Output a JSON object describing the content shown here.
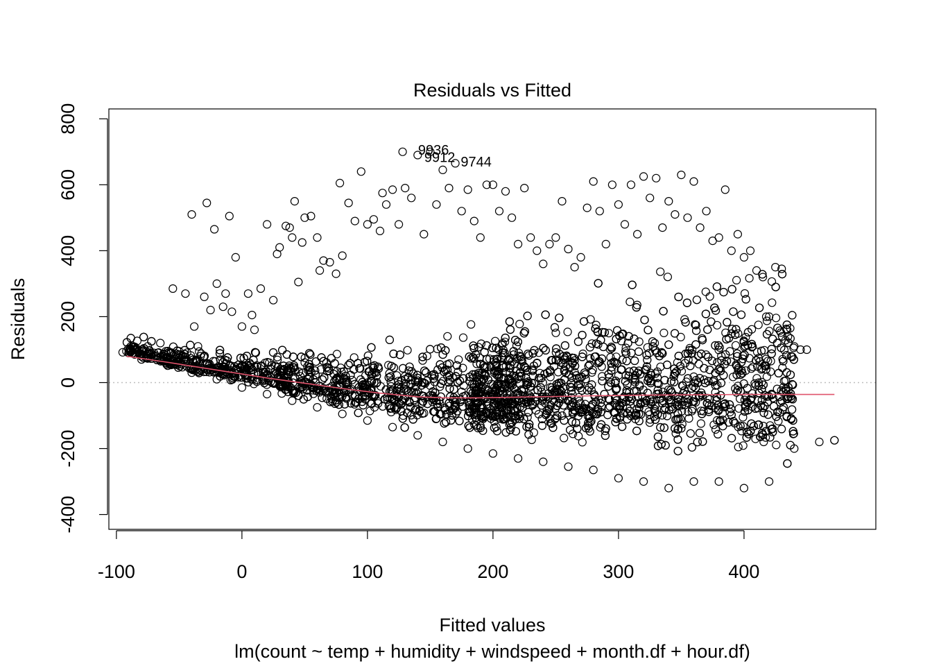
{
  "chart_data": {
    "type": "scatter",
    "title": "Residuals vs Fitted",
    "xlabel": "Fitted values",
    "ylabel": "Residuals",
    "subtitle": "lm(count ~ temp + humidity + windspeed + month.df + hour.df)",
    "xlim": [
      -106,
      505
    ],
    "ylim": [
      -445,
      830
    ],
    "x_ticks": [
      -100,
      0,
      100,
      200,
      300,
      400
    ],
    "y_ticks": [
      -400,
      -200,
      0,
      200,
      400,
      600,
      800
    ],
    "x_tick_labels": [
      "-100",
      "0",
      "100",
      "200",
      "300",
      "400"
    ],
    "y_tick_labels": [
      "-400",
      "-200",
      "0",
      "200",
      "400",
      "600",
      "800"
    ],
    "reference_line": {
      "y": 0,
      "style": "dotted",
      "color": "#bebebe"
    },
    "grid": false,
    "point_color": "#000000",
    "smooth_color": "#df536b",
    "smooth_line": {
      "x": [
        -92,
        -60,
        -20,
        0,
        20,
        50,
        80,
        110,
        140,
        160,
        190,
        220,
        250,
        280,
        320,
        360,
        400,
        440,
        472
      ],
      "y": [
        80,
        62,
        38,
        26,
        14,
        -2,
        -18,
        -32,
        -43,
        -46,
        -46,
        -44,
        -42,
        -40,
        -38,
        -37,
        -36,
        -36,
        -36
      ]
    },
    "labeled_points": [
      {
        "label": "9936",
        "x": 137,
        "y": 702
      },
      {
        "label": "9912",
        "x": 142,
        "y": 680
      },
      {
        "label": "9744",
        "x": 171,
        "y": 666
      }
    ],
    "series": [
      {
        "x": [
          -92,
          -88,
          -85,
          -80,
          -75,
          -70,
          -65,
          -60,
          -55,
          -50,
          -45,
          -40,
          -38,
          -35,
          -30,
          -28,
          -25,
          -22,
          -20,
          -15,
          -13,
          -10,
          -8,
          -5,
          0,
          5,
          8,
          10,
          15,
          20,
          25,
          28,
          30,
          35,
          38,
          40,
          42,
          45,
          48,
          50,
          55,
          60,
          62,
          65,
          70,
          75,
          78,
          80,
          85,
          90,
          95,
          100,
          105,
          110,
          112,
          115,
          120,
          125,
          128,
          130,
          135,
          140,
          145,
          150,
          155,
          160,
          165,
          170,
          175,
          180,
          185,
          190,
          195,
          200,
          205,
          210,
          215,
          220,
          225,
          230,
          235,
          240,
          245,
          250,
          255,
          260,
          265,
          270,
          275,
          280,
          285,
          290,
          295,
          300,
          305,
          310,
          315,
          320,
          325,
          330,
          335,
          340,
          345,
          350,
          355,
          360,
          365,
          370,
          375,
          380,
          385,
          390,
          395,
          400,
          405,
          410,
          415,
          420,
          425,
          430,
          435,
          440,
          445,
          450,
          472
        ],
        "y": [
          95,
          98,
          102,
          96,
          110,
          90,
          120,
          88,
          285,
          95,
          270,
          510,
          170,
          110,
          260,
          545,
          220,
          465,
          300,
          230,
          270,
          505,
          215,
          380,
          170,
          270,
          205,
          160,
          285,
          480,
          250,
          390,
          410,
          475,
          470,
          440,
          550,
          305,
          425,
          500,
          505,
          440,
          340,
          370,
          365,
          330,
          605,
          385,
          545,
          490,
          640,
          480,
          495,
          460,
          575,
          540,
          585,
          480,
          700,
          590,
          560,
          690,
          450,
          700,
          540,
          645,
          590,
          665,
          520,
          585,
          490,
          440,
          600,
          600,
          520,
          580,
          500,
          420,
          590,
          440,
          400,
          360,
          420,
          440,
          550,
          405,
          350,
          380,
          530,
          610,
          520,
          420,
          600,
          540,
          480,
          600,
          450,
          625,
          560,
          620,
          470,
          550,
          510,
          630,
          500,
          610,
          470,
          520,
          430,
          440,
          585,
          400,
          450,
          380,
          400,
          340,
          320,
          200,
          350,
          345,
          140,
          110,
          100,
          100,
          -175
        ],
        "low_x": [
          -95,
          -80,
          -60,
          -40,
          -20,
          0,
          20,
          40,
          60,
          80,
          100,
          120,
          140,
          160,
          180,
          200,
          220,
          240,
          260,
          280,
          300,
          320,
          340,
          360,
          380,
          400,
          420,
          440,
          460,
          472
        ],
        "low_y": [
          92,
          70,
          55,
          30,
          10,
          -15,
          -35,
          -55,
          -75,
          -95,
          -115,
          -135,
          -160,
          -180,
          -200,
          -215,
          -230,
          -240,
          -255,
          -265,
          -290,
          -300,
          -320,
          -300,
          -300,
          -320,
          -300,
          -200,
          -180,
          -175
        ]
      }
    ]
  }
}
